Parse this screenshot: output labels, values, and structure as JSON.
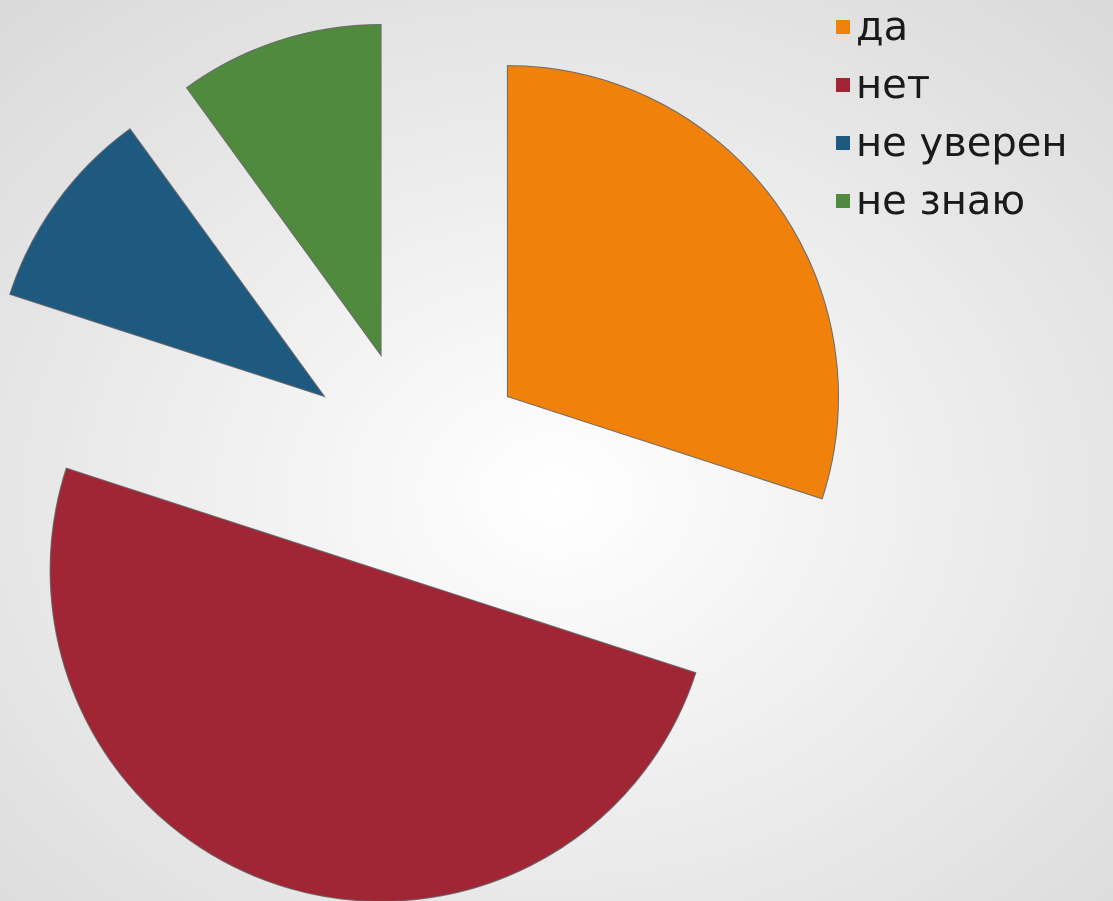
{
  "chart_data": {
    "type": "pie",
    "categories": [
      "да",
      "нет",
      "не уверен",
      "не знаю"
    ],
    "values": [
      30,
      50,
      10,
      10
    ],
    "colors": [
      "#f0820b",
      "#a02535",
      "#1e5a80",
      "#4f8a3f"
    ],
    "exploded": true,
    "legend": "upper right"
  }
}
